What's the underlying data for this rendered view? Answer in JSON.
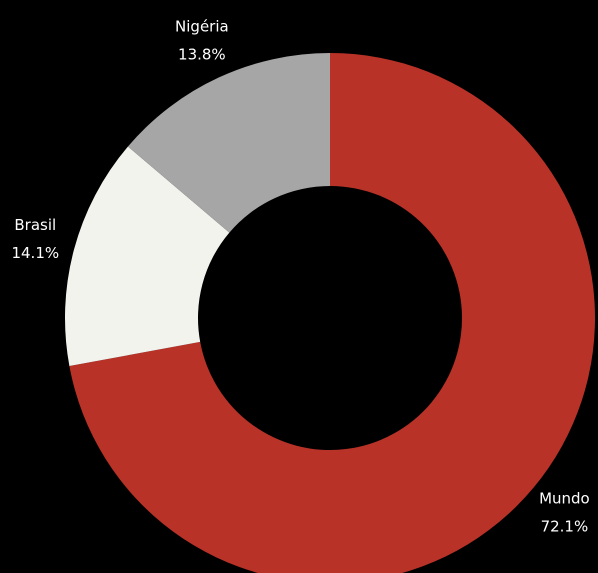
{
  "chart_data": {
    "type": "donut",
    "categories": [
      "Mundo",
      "Brasil",
      "Nigéria"
    ],
    "values": [
      72.1,
      14.1,
      13.8
    ],
    "value_labels": [
      "72.1%",
      "14.1%",
      "13.8%"
    ],
    "colors": [
      "#b83228",
      "#f3f3ee",
      "#a6a6a6"
    ]
  }
}
